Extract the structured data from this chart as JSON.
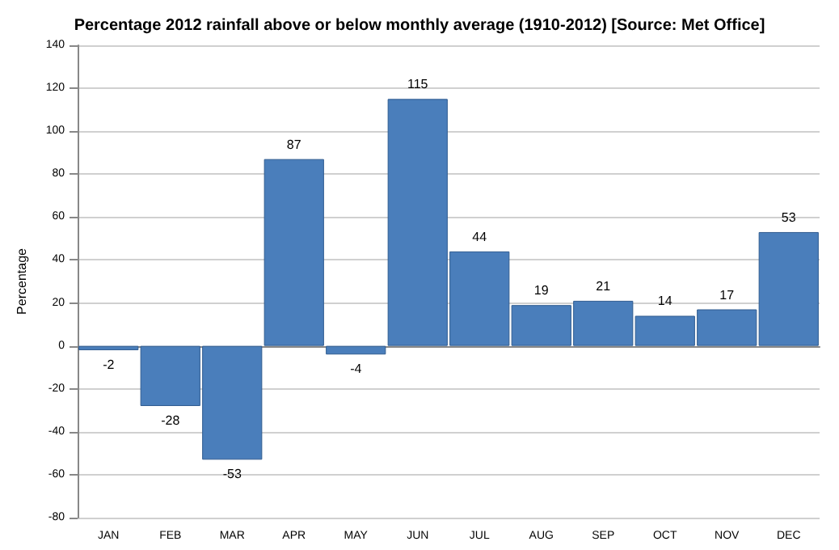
{
  "chart_data": {
    "type": "bar",
    "title": "Percentage 2012 rainfall above or below monthly average (1910-2012) [Source: Met Office]",
    "ylabel": "Percentage",
    "categories": [
      "JAN",
      "FEB",
      "MAR",
      "APR",
      "MAY",
      "JUN",
      "JUL",
      "AUG",
      "SEP",
      "OCT",
      "NOV",
      "DEC"
    ],
    "values": [
      -2,
      -28,
      -53,
      87,
      -4,
      115,
      44,
      19,
      21,
      14,
      17,
      53
    ],
    "color": "#4a7ebb",
    "ylim": [
      -80,
      140
    ],
    "yticks": [
      -80,
      -60,
      -40,
      -20,
      0,
      20,
      40,
      60,
      80,
      100,
      120,
      140
    ],
    "grid": "y",
    "data_labels": true
  }
}
